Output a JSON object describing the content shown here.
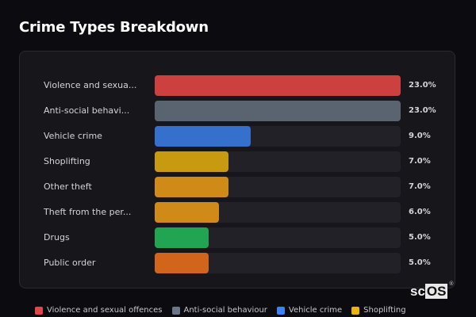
{
  "header": {
    "title": "Crime Types Breakdown"
  },
  "chart_data": {
    "type": "bar",
    "orientation": "horizontal",
    "title": "Crime Types Breakdown",
    "categories": [
      "Violence and sexua...",
      "Anti-social behavi...",
      "Vehicle crime",
      "Shoplifting",
      "Other theft",
      "Theft from the per...",
      "Drugs",
      "Public order"
    ],
    "values": [
      23.0,
      23.0,
      9.0,
      7.0,
      7.0,
      6.0,
      5.0,
      5.0
    ],
    "value_labels": [
      "23.0%",
      "23.0%",
      "9.0%",
      "7.0%",
      "7.0%",
      "6.0%",
      "5.0%",
      "5.0%"
    ],
    "bar_fill_pct": [
      100,
      100,
      39,
      30,
      30,
      26,
      22,
      22
    ],
    "colors": [
      "#cc4040",
      "#5a6370",
      "#3470cc",
      "#c79a10",
      "#d08a18",
      "#d08a18",
      "#22a552",
      "#d2651c"
    ],
    "xlabel": "",
    "ylabel": "",
    "legend": [
      {
        "label": "Violence and sexual offences",
        "color": "#e0474c"
      },
      {
        "label": "Anti-social behaviour",
        "color": "#6b7688"
      },
      {
        "label": "Vehicle crime",
        "color": "#3b82f6"
      },
      {
        "label": "Shoplifting",
        "color": "#eab308"
      }
    ],
    "legend_position": "bottom"
  },
  "logo": {
    "text_a": "sc",
    "text_b": "OS",
    "reg": "®"
  }
}
